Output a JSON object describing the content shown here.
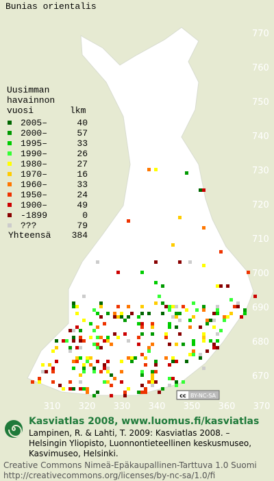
{
  "title": "Bunias orientalis",
  "legend": {
    "heading": [
      "Uusimman",
      "havainnon"
    ],
    "col_year": "vuosi",
    "col_count": "lkm",
    "rows": [
      {
        "label": "2005–",
        "count": 40,
        "color": "#006600"
      },
      {
        "label": "2000–",
        "count": 57,
        "color": "#009900"
      },
      {
        "label": "1995–",
        "count": 33,
        "color": "#00cc00"
      },
      {
        "label": "1990–",
        "count": 26,
        "color": "#33ff33"
      },
      {
        "label": "1980–",
        "count": 27,
        "color": "#ffff00"
      },
      {
        "label": "1970–",
        "count": 16,
        "color": "#ffcc00"
      },
      {
        "label": "1960–",
        "count": 33,
        "color": "#ff7700"
      },
      {
        "label": "1950–",
        "count": 24,
        "color": "#ee3300"
      },
      {
        "label": "1900–",
        "count": 49,
        "color": "#cc0000"
      },
      {
        "label": "-1899",
        "count": 0,
        "color": "#880000"
      },
      {
        "label": "???",
        "count": 79,
        "color": "#cccccc"
      }
    ],
    "total_label": "Yhteensä",
    "total": 384
  },
  "grid": {
    "north": [
      770,
      760,
      750,
      740,
      730,
      720,
      710,
      700,
      690,
      680,
      670
    ],
    "east": [
      310,
      320,
      330,
      340,
      350,
      360,
      370
    ]
  },
  "license_badge": {
    "icon": "cc",
    "text": "BY-NC-SA"
  },
  "footer": {
    "heading": "Kasviatlas 2008, www.luomus.fi/kasviatlas",
    "citation": [
      "Lampinen, R. & Lahti, T. 2009: Kasviatlas 2008. –",
      "Helsingin Yliopisto, Luonnontieteellinen keskusmuseo,",
      "Kasvimuseo, Helsinki."
    ],
    "license": [
      "Creative Commons Nimeä-Epäkaupallinen-Tarttuva 1.0 Suomi",
      "http://creativecommons.org/licenses/by-nc-sa/1.0/fi"
    ]
  }
}
